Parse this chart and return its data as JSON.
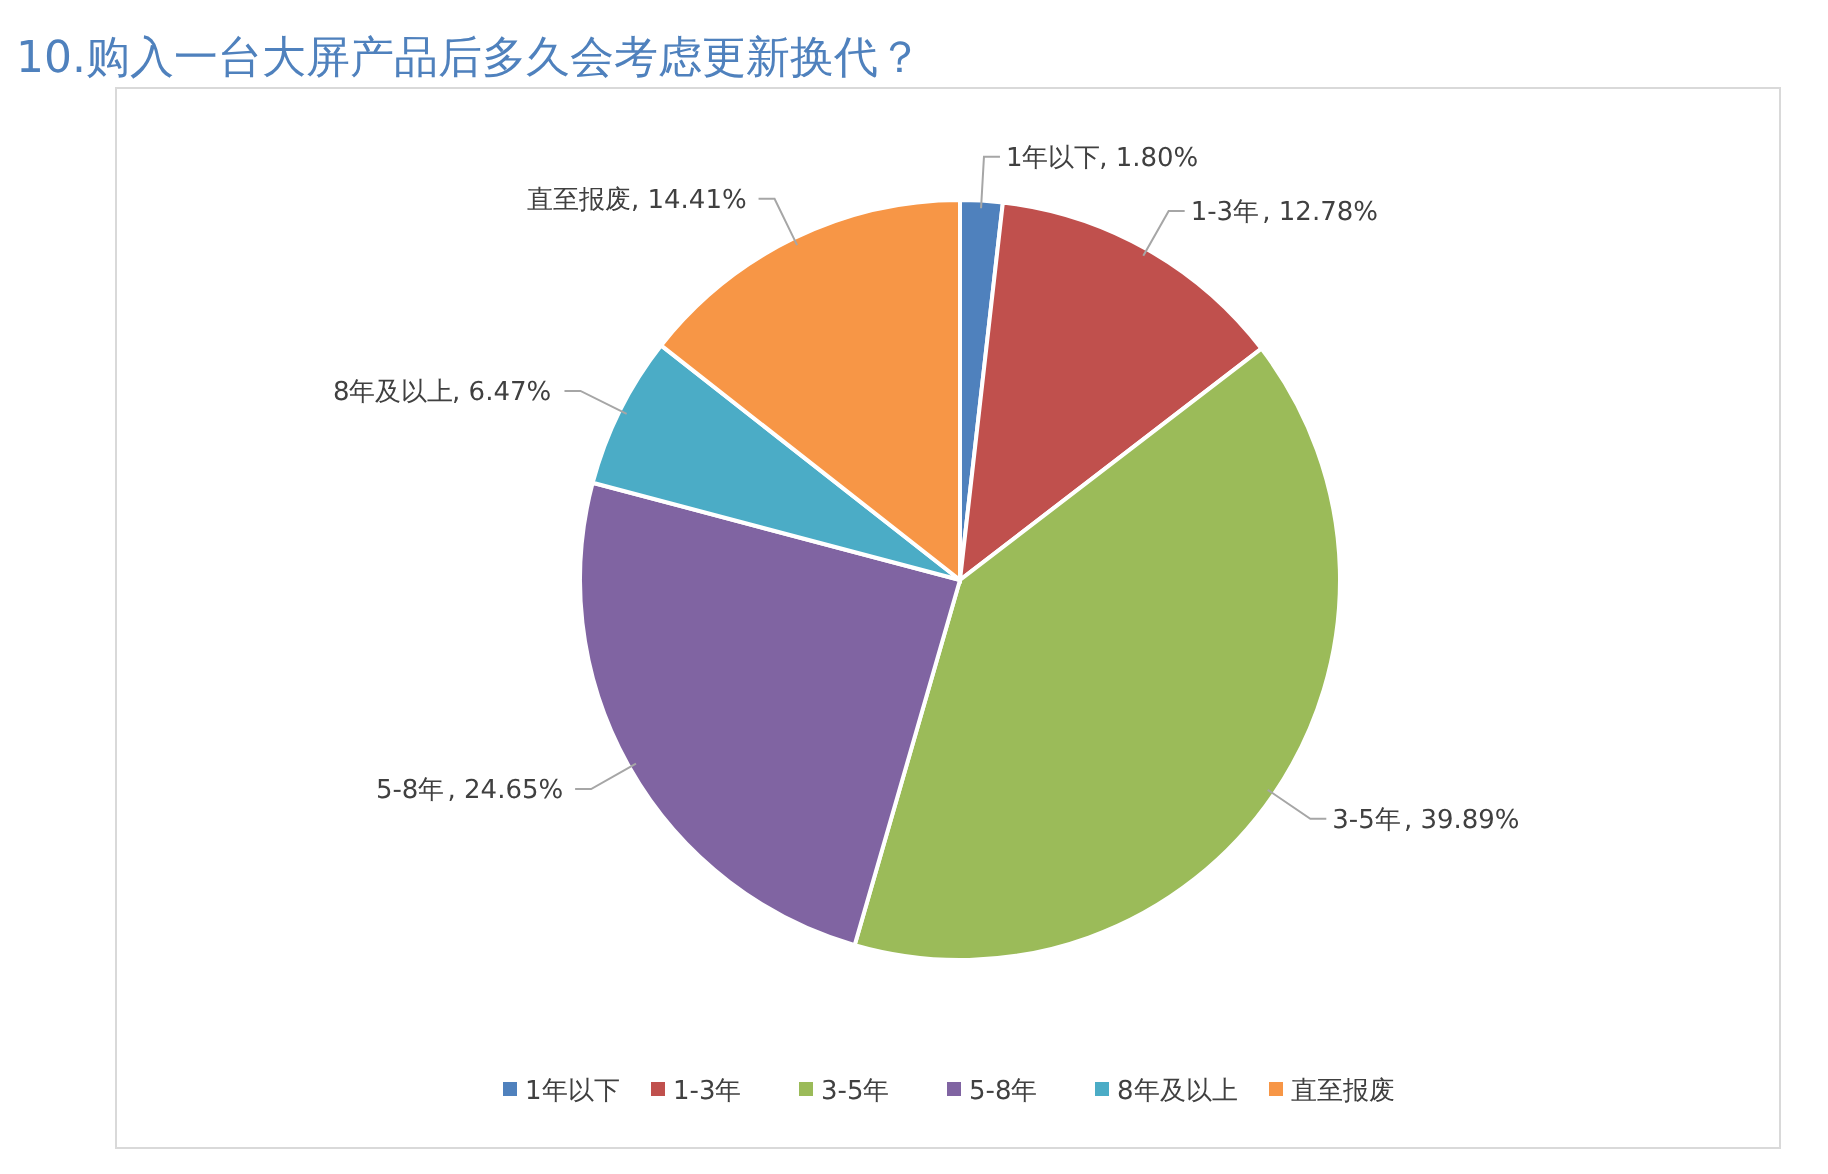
{
  "chart_data": {
    "type": "pie",
    "title": "10.购入一台大屏产品后多久会考虑更新换代？",
    "categories": [
      "1年以下",
      "1-3年",
      "3-5年",
      "5-8年",
      "8年及以上",
      "直至报废"
    ],
    "values": [
      1.8,
      12.78,
      39.89,
      24.65,
      6.47,
      14.41
    ],
    "colors": [
      "#4f81bd",
      "#c0504d",
      "#9bbb59",
      "#8064a2",
      "#4bacc6",
      "#f79646"
    ],
    "value_labels": [
      ", 1.80%",
      ", 12.78%",
      ", 39.89%",
      ", 24.65%",
      ", 6.47%",
      ", 14.41%"
    ],
    "legend": "bottom"
  }
}
